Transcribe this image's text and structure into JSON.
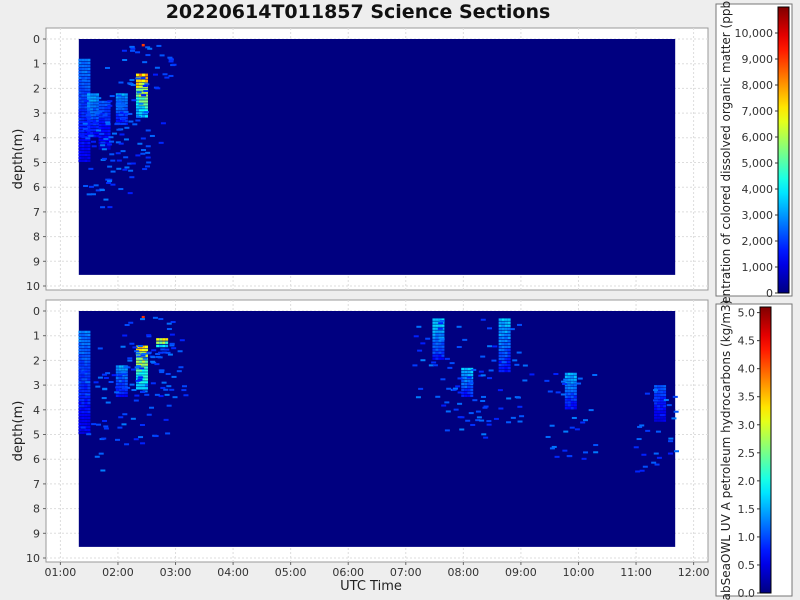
{
  "title": "20220614T011857 Science Sections",
  "chart_data": [
    {
      "type": "heatmap",
      "panel": "top",
      "xlabel": "",
      "ylabel": "depth(m)",
      "y_ticks": [
        "0",
        "1",
        "2",
        "3",
        "4",
        "5",
        "6",
        "7",
        "8",
        "9",
        "10"
      ],
      "ylim": [
        10,
        0
      ],
      "x_range_hours": [
        1.32,
        11.68
      ],
      "colorbar": {
        "label": "entration of colored dissolved organic matter (ppb)",
        "ticks": [
          "0",
          "1,000",
          "2,000",
          "3,000",
          "4,000",
          "5,000",
          "6,000",
          "7,000",
          "8,000",
          "9,000",
          "10,000"
        ],
        "range": [
          0,
          11000
        ]
      },
      "background_value": 0,
      "features": [
        {
          "time": 1.4,
          "depth_top": 0.8,
          "depth_bottom": 5.0,
          "value": 3000
        },
        {
          "time": 1.55,
          "depth_top": 2.2,
          "depth_bottom": 4.0,
          "value": 3500
        },
        {
          "time": 1.75,
          "depth_top": 2.5,
          "depth_bottom": 4.5,
          "value": 2500
        },
        {
          "time": 2.05,
          "depth_top": 2.2,
          "depth_bottom": 3.5,
          "value": 3500
        },
        {
          "time": 2.4,
          "depth_top": 1.4,
          "depth_bottom": 3.2,
          "value": 8500
        },
        {
          "time": 2.5,
          "depth_top": 0.2,
          "depth_bottom": 0.25,
          "value": 10000
        }
      ]
    },
    {
      "type": "heatmap",
      "panel": "bottom",
      "xlabel": "UTC Time",
      "ylabel": "depth(m)",
      "x_ticks": [
        "01:00",
        "02:00",
        "03:00",
        "04:00",
        "05:00",
        "06:00",
        "07:00",
        "08:00",
        "09:00",
        "10:00",
        "11:00",
        "12:00"
      ],
      "y_ticks": [
        "0",
        "1",
        "2",
        "3",
        "4",
        "5",
        "6",
        "7",
        "8",
        "9",
        "10"
      ],
      "ylim": [
        10,
        0
      ],
      "x_range_hours": [
        1.32,
        11.68
      ],
      "colorbar": {
        "label": "abSeaOWL UV A petroleum hydrocarbons (kg/m3)",
        "ticks": [
          "0.0",
          "0.5",
          "1.0",
          "1.5",
          "2.0",
          "2.5",
          "3.0",
          "3.5",
          "4.0",
          "4.5",
          "5.0"
        ],
        "range": [
          0,
          5.1
        ]
      },
      "background_value": 0,
      "features": [
        {
          "time": 1.4,
          "depth_top": 0.8,
          "depth_bottom": 5.0,
          "value": 1.4
        },
        {
          "time": 2.05,
          "depth_top": 2.2,
          "depth_bottom": 3.5,
          "value": 1.6
        },
        {
          "time": 2.4,
          "depth_top": 1.4,
          "depth_bottom": 3.2,
          "value": 3.8
        },
        {
          "time": 2.5,
          "depth_top": 0.2,
          "depth_bottom": 0.25,
          "value": 4.3
        },
        {
          "time": 2.75,
          "depth_top": 1.1,
          "depth_bottom": 1.5,
          "value": 3.5
        },
        {
          "time": 7.55,
          "depth_top": 0.3,
          "depth_bottom": 2.0,
          "value": 1.9
        },
        {
          "time": 8.05,
          "depth_top": 2.3,
          "depth_bottom": 3.5,
          "value": 1.8
        },
        {
          "time": 8.7,
          "depth_top": 0.3,
          "depth_bottom": 2.5,
          "value": 1.8
        },
        {
          "time": 9.85,
          "depth_top": 2.5,
          "depth_bottom": 4.0,
          "value": 1.7
        },
        {
          "time": 11.4,
          "depth_top": 3.0,
          "depth_bottom": 4.5,
          "value": 1.2
        }
      ]
    }
  ]
}
